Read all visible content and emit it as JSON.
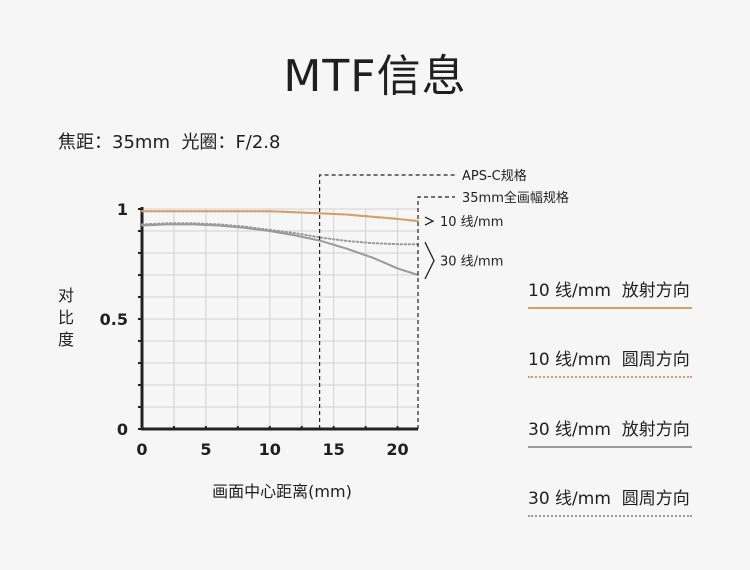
{
  "title": "MTF信息",
  "specs": {
    "focal_label": "焦距：",
    "focal_value": "35mm",
    "aperture_label": "光圈：",
    "aperture_value": "F/2.8"
  },
  "chart_data": {
    "type": "line",
    "xlabel": "画面中心距离(mm)",
    "ylabel": "对比度",
    "xlim": [
      0,
      21.6
    ],
    "ylim": [
      0,
      1
    ],
    "x_ticks": [
      "0",
      "5",
      "10",
      "15",
      "20"
    ],
    "y_ticks": [
      "0",
      "0.5",
      "1"
    ],
    "grid": true,
    "markers": [
      {
        "label": "APS-C规格",
        "x": 13.9
      },
      {
        "label": "35mm全画幅规格",
        "x": 21.6
      }
    ],
    "group_labels": [
      {
        "label": "10 线/mm",
        "series": [
          0,
          1
        ]
      },
      {
        "label": "30 线/mm",
        "series": [
          2,
          3
        ]
      }
    ],
    "series": [
      {
        "name": "10 线/mm  放射方向",
        "color": "#d4a06a",
        "style": "solid",
        "x": [
          0,
          2,
          4,
          6,
          8,
          10,
          12,
          14,
          16,
          18,
          20,
          21.6
        ],
        "y": [
          0.99,
          0.99,
          0.99,
          0.99,
          0.99,
          0.99,
          0.985,
          0.98,
          0.975,
          0.965,
          0.955,
          0.945
        ]
      },
      {
        "name": "10 线/mm  圆周方向",
        "color": "#d4a06a",
        "style": "dotted",
        "x": [
          0,
          2,
          4,
          6,
          8,
          10,
          12,
          14,
          16,
          18,
          20,
          21.6
        ],
        "y": [
          0.99,
          0.99,
          0.99,
          0.99,
          0.99,
          0.99,
          0.985,
          0.98,
          0.975,
          0.965,
          0.955,
          0.945
        ]
      },
      {
        "name": "30 线/mm  放射方向",
        "color": "#9a9a9a",
        "style": "solid",
        "x": [
          0,
          2,
          4,
          6,
          8,
          10,
          12,
          14,
          16,
          18,
          20,
          21.6
        ],
        "y": [
          0.925,
          0.93,
          0.93,
          0.925,
          0.915,
          0.9,
          0.88,
          0.855,
          0.82,
          0.78,
          0.73,
          0.7
        ]
      },
      {
        "name": "30 线/mm  圆周方向",
        "color": "#9a9a9a",
        "style": "dotted",
        "x": [
          0,
          2,
          4,
          6,
          8,
          10,
          12,
          14,
          16,
          18,
          20,
          21.6
        ],
        "y": [
          0.93,
          0.935,
          0.935,
          0.93,
          0.92,
          0.905,
          0.89,
          0.87,
          0.855,
          0.845,
          0.84,
          0.84
        ]
      }
    ]
  }
}
